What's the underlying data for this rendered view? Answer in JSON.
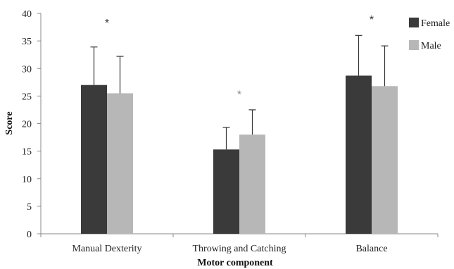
{
  "chart_data": {
    "type": "bar",
    "xlabel": "Motor component",
    "ylabel": "Score",
    "ylim": [
      0,
      40
    ],
    "yticks": [
      0,
      5,
      10,
      15,
      20,
      25,
      30,
      35,
      40
    ],
    "grid": false,
    "legend_position": "top-right",
    "categories": [
      "Manual Dexterity",
      "Throwing and Catching",
      "Balance"
    ],
    "series": [
      {
        "name": "Female",
        "color": "#3a3a3a",
        "values": [
          27.0,
          15.3,
          28.7
        ],
        "errors": [
          6.9,
          4.0,
          7.3
        ]
      },
      {
        "name": "Male",
        "color": "#b7b7b7",
        "values": [
          25.5,
          18.0,
          26.8
        ],
        "errors": [
          6.7,
          4.5,
          7.3
        ]
      }
    ],
    "annotations": [
      {
        "category": "Manual Dexterity",
        "text": "*",
        "y": 39.0
      },
      {
        "category": "Throwing and Catching",
        "text": "*",
        "y": 26.0
      },
      {
        "category": "Balance",
        "text": "*",
        "y": 39.6
      }
    ]
  }
}
